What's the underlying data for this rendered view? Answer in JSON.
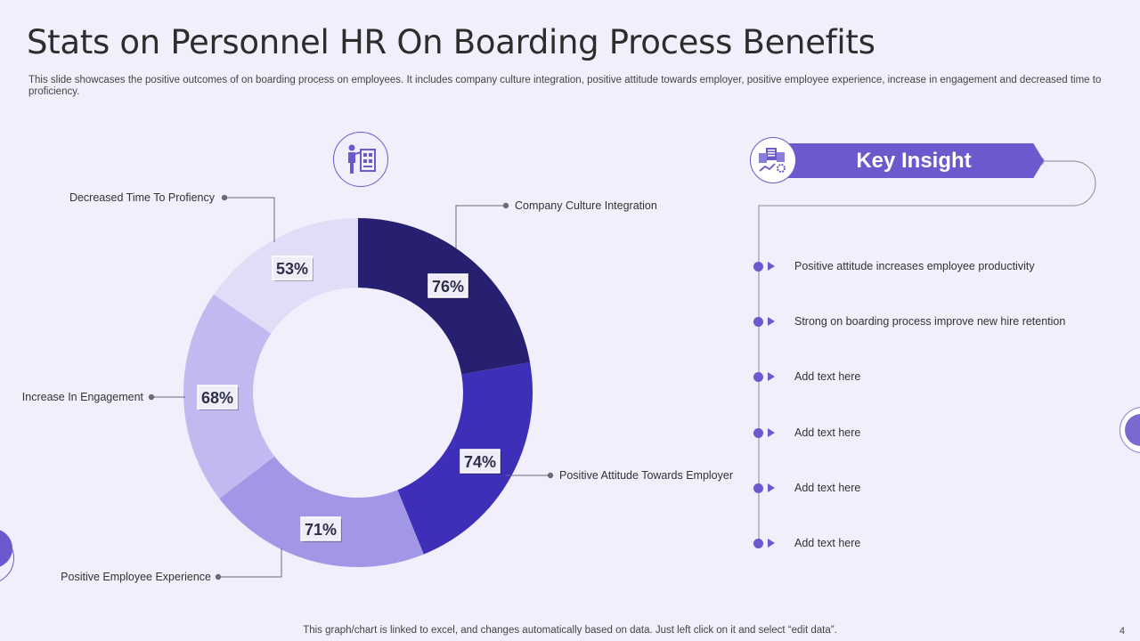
{
  "title": "Stats on Personnel HR On Boarding Process Benefits",
  "subtitle": "This slide showcases the positive outcomes of on boarding process on employees. It includes company culture integration, positive attitude towards employer, positive employee experience, increase in engagement and decreased time to proficiency.",
  "colors": {
    "background": "#f0effb",
    "accent": "#6a5acd",
    "slices": [
      "#271f70",
      "#3e2fb8",
      "#a197e6",
      "#c1baf0",
      "#e0ddf7"
    ]
  },
  "chart_data": {
    "type": "pie",
    "variant": "donut",
    "categories": [
      "Company Culture Integration",
      "Positive Attitude Towards Employer",
      "Positive Employee Experience",
      "Increase In Engagement",
      "Decreased Time To Profiency"
    ],
    "values": [
      76,
      74,
      71,
      68,
      53
    ],
    "value_labels": [
      "76%",
      "74%",
      "71%",
      "68%",
      "53%"
    ],
    "title": ""
  },
  "key_insight": {
    "title": "Key Insight",
    "icon": "analytics-icon",
    "items": [
      "Positive attitude increases employee productivity",
      "Strong on boarding process improve new hire retention",
      "Add text here",
      "Add text here",
      "Add text here",
      "Add text here"
    ]
  },
  "chart_icon": "employee-presentation-icon",
  "footer": "This graph/chart is linked to excel,  and changes automatically based on data. Just left click on it and select “edit data”.",
  "page_number": "4"
}
